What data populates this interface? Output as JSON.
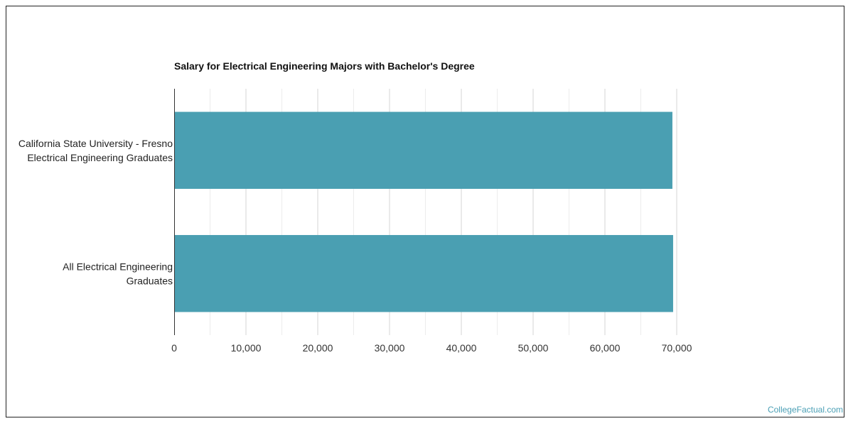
{
  "chart_data": {
    "type": "bar",
    "orientation": "horizontal",
    "title": "Salary for Electrical Engineering Majors with Bachelor's Degree",
    "categories": [
      [
        "California State University - Fresno",
        "Electrical Engineering Graduates"
      ],
      [
        "All Electrical Engineering",
        "Graduates"
      ]
    ],
    "values": [
      69400,
      69500
    ],
    "xlim": [
      0,
      70000
    ],
    "x_ticks": [
      0,
      10000,
      20000,
      30000,
      40000,
      50000,
      60000,
      70000
    ],
    "x_tick_labels": [
      "0",
      "10,000",
      "20,000",
      "30,000",
      "40,000",
      "50,000",
      "60,000",
      "70,000"
    ],
    "grid": true,
    "bar_color": "#4a9fb2"
  },
  "footer": {
    "credit": "CollegeFactual.com"
  }
}
